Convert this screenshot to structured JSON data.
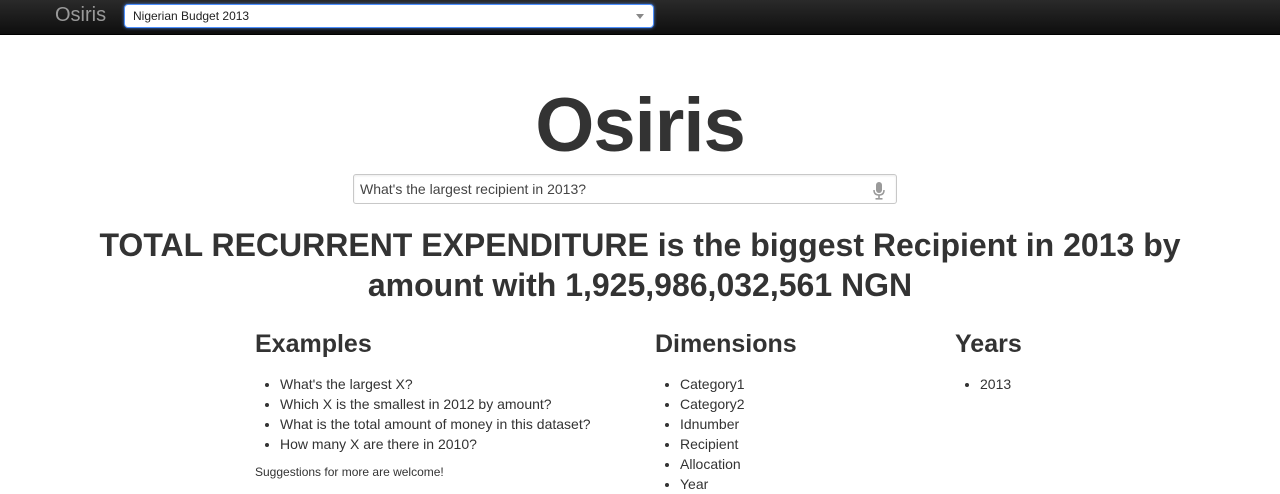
{
  "navbar": {
    "brand": "Osiris",
    "dataset_selected": "Nigerian Budget 2013"
  },
  "hero": {
    "title": "Osiris"
  },
  "search": {
    "value": "What's the largest recipient in 2013?",
    "mic_icon": "microphone-icon"
  },
  "answer": {
    "line1": "TOTAL RECURRENT EXPENDITURE is the biggest Recipient in 2013 by",
    "line2": "amount with 1,925,986,032,561 NGN"
  },
  "examples": {
    "heading": "Examples",
    "items": [
      "What's the largest X?",
      "Which X is the smallest in 2012 by amount?",
      "What is the total amount of money in this dataset?",
      "How many X are there in 2010?"
    ],
    "note": "Suggestions for more are welcome!"
  },
  "dimensions": {
    "heading": "Dimensions",
    "items": [
      "Category1",
      "Category2",
      "Idnumber",
      "Recipient",
      "Allocation",
      "Year"
    ]
  },
  "years": {
    "heading": "Years",
    "items": [
      "2013"
    ]
  }
}
